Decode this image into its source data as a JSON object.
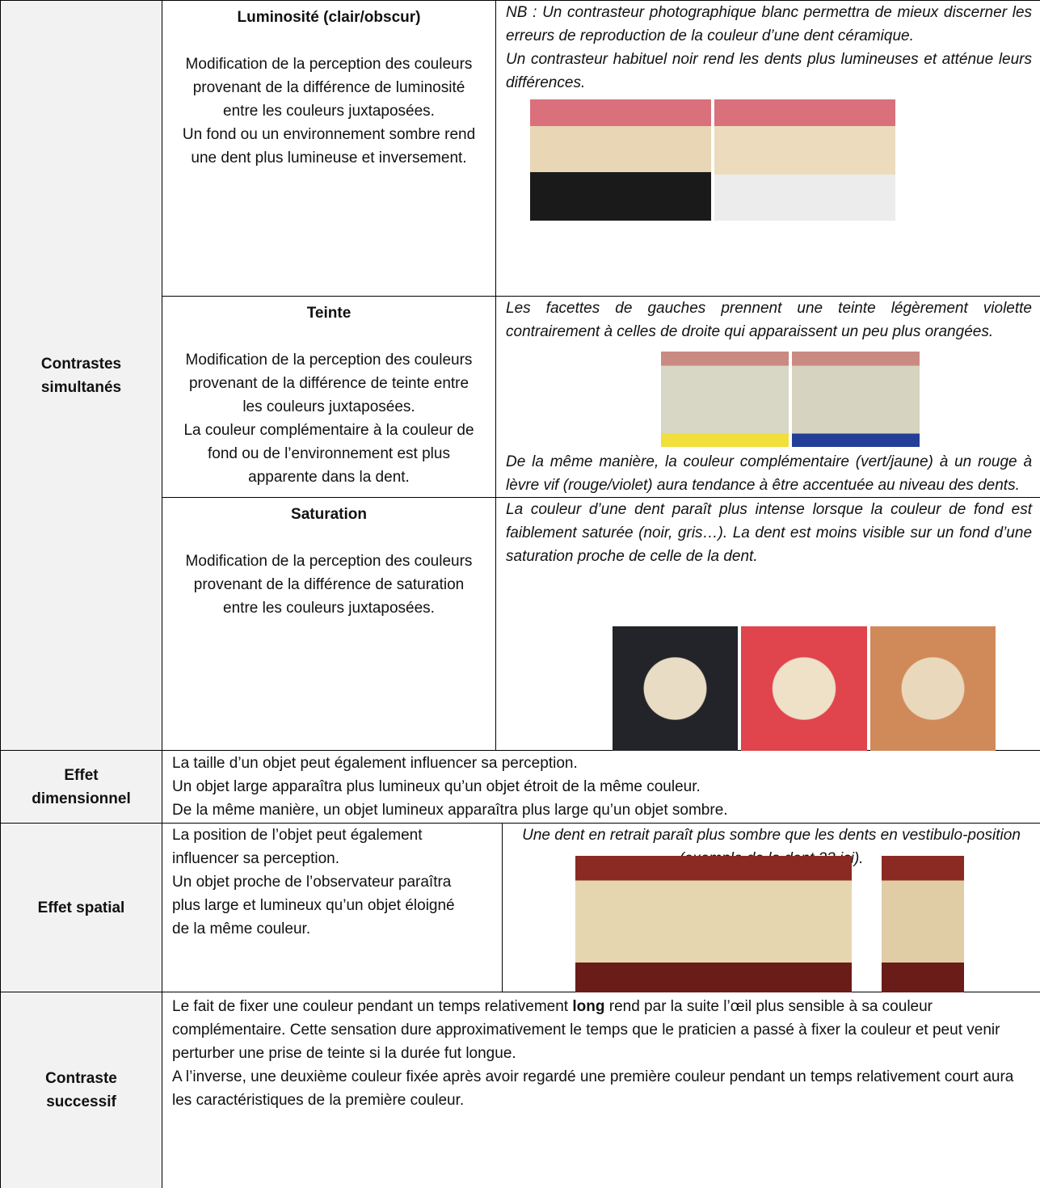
{
  "contrastes": {
    "label": "Contrastes simultanés",
    "luminosite": {
      "title": "Luminosité (clair/obscur)",
      "description": [
        "Modification de la perception des couleurs provenant de la différence de luminosité entre les couleurs juxtaposées.",
        "Un fond ou un environnement sombre rend une dent plus lumineuse et inversement."
      ],
      "notes": [
        "NB : Un contrasteur photographique blanc permettra de mieux discerner les erreurs de reproduction de la couleur d’une dent céramique.",
        "Un contrasteur habituel noir rend les dents plus lumineuses et atténue leurs différences."
      ]
    },
    "teinte": {
      "title": "Teinte",
      "description": [
        "Modification de la perception des couleurs provenant de la différence de teinte entre les couleurs juxtaposées.",
        "La couleur complémentaire à la couleur de fond ou de l’environnement est plus apparente dans la dent."
      ],
      "notes": [
        "Les facettes de gauches prennent une teinte légèrement violette contrairement à celles de droite qui apparaissent un peu plus orangées.",
        "De la même manière, la couleur complémentaire (vert/jaune) à un rouge à lèvre vif (rouge/violet) aura tendance à être accentuée au niveau des dents."
      ]
    },
    "saturation": {
      "title": "Saturation",
      "description": [
        "Modification de la perception des couleurs provenant de la différence de saturation entre les couleurs juxtaposées."
      ],
      "notes": [
        "La couleur d’une dent paraît plus intense lorsque la couleur de fond est faiblement saturée (noir, gris…). La dent est moins visible sur un fond d’une saturation proche de celle de la dent."
      ]
    }
  },
  "dimensionnel": {
    "label": "Effet dimensionnel",
    "lines": [
      "La taille d’un objet peut également influencer sa perception.",
      "Un objet large apparaîtra plus lumineux qu’un objet étroit de la même couleur.",
      "De la même manière, un objet lumineux apparaîtra plus large qu’un objet sombre."
    ]
  },
  "spatial": {
    "label": "Effet spatial",
    "description": [
      "La position de l’objet peut également influencer sa perception.",
      "Un objet proche de l’observateur paraîtra plus large et lumineux qu’un objet éloigné de la même couleur."
    ],
    "note": "Une dent en retrait paraît plus sombre que les dents en vestibulo-position (exemple de la dent 23 ici)."
  },
  "successif": {
    "label": "Contraste successif",
    "paragraphs": [
      {
        "before": "Le fait de fixer une couleur pendant un temps relativement ",
        "bold": "long",
        "after": " rend par la suite l’œil plus sensible à sa couleur complémentaire. Cette sensation dure approximativement le temps que le praticien a passé à fixer la couleur et peut venir perturber une prise de teinte si la durée fut longue."
      },
      {
        "text": "A l’inverse, une deuxième couleur fixée après avoir regardé une première couleur pendant un temps relativement court aura les caractéristiques de la première couleur."
      }
    ]
  }
}
